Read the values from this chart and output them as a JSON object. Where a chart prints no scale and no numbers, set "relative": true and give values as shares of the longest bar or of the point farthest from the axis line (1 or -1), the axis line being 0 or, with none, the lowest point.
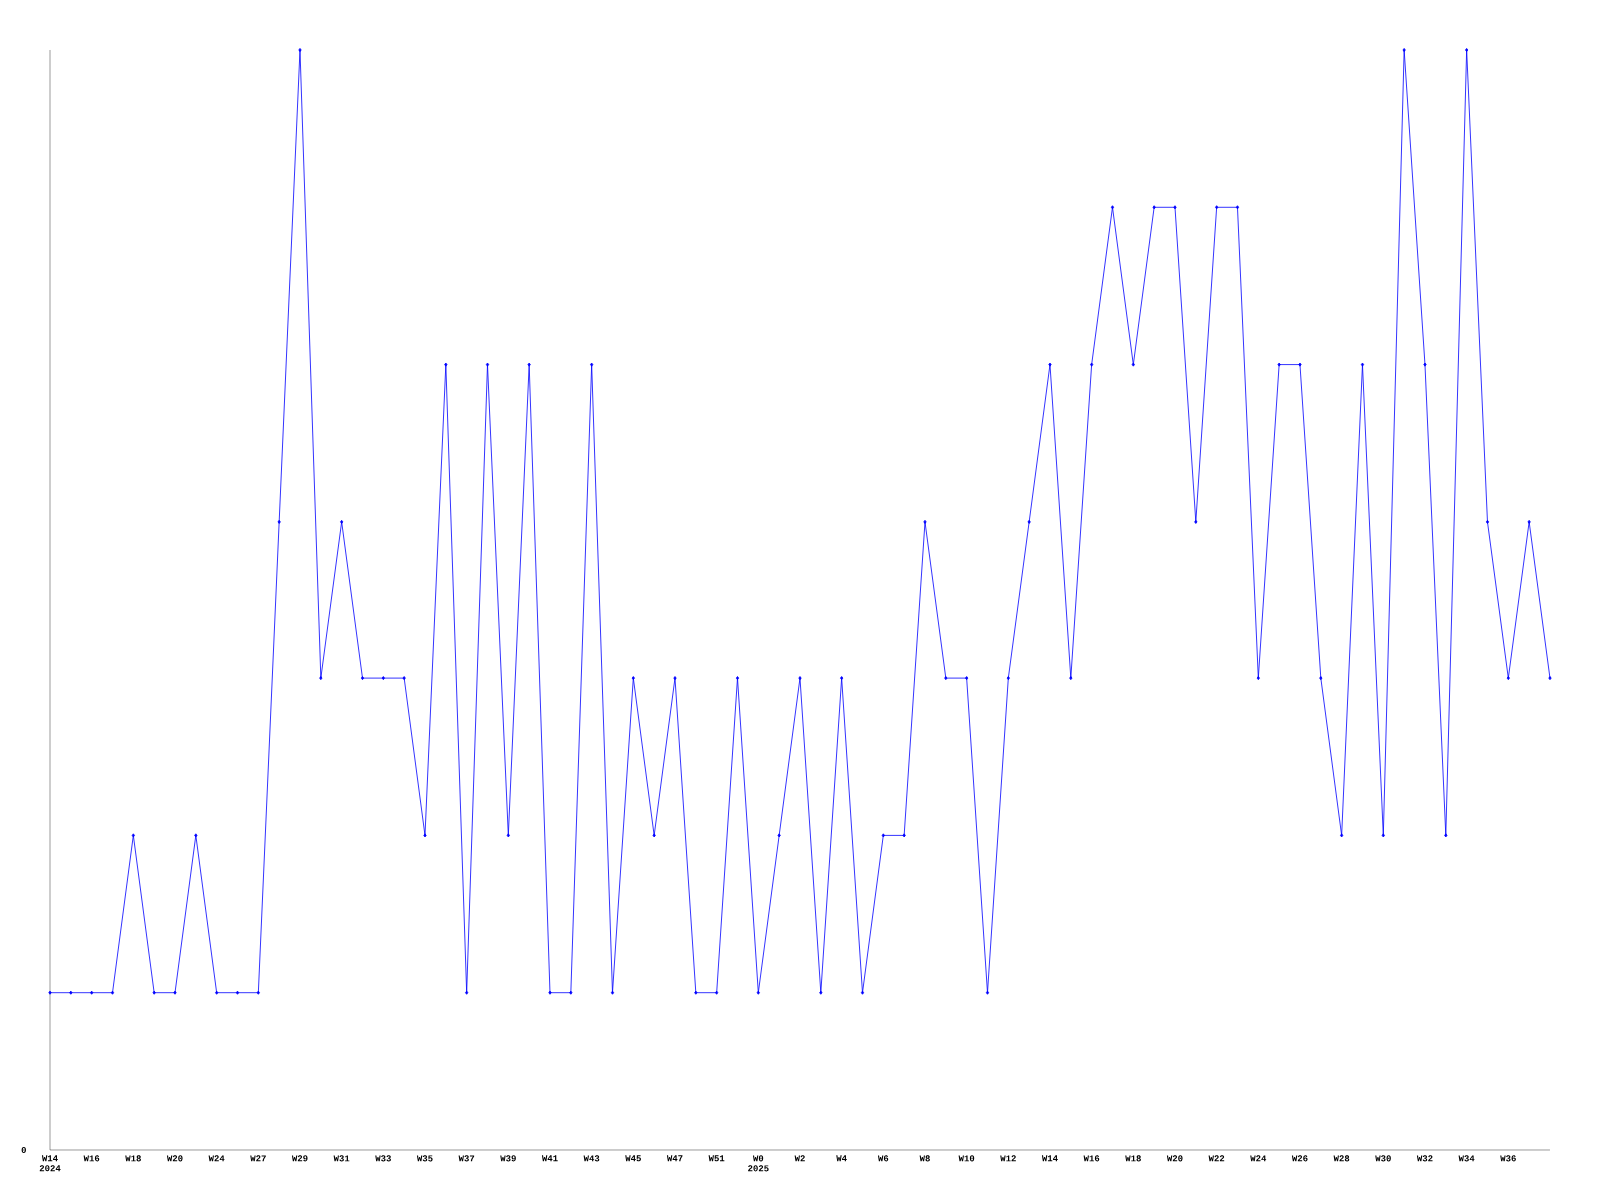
{
  "chart_data": {
    "type": "line",
    "relative": true,
    "color": "#0000ff",
    "marker": "diamond",
    "line_style": "solid",
    "categories": [
      "W14 2024",
      null,
      "W16",
      null,
      "W18",
      null,
      "W20",
      null,
      "W24",
      null,
      "W27",
      null,
      "W29",
      null,
      "W31",
      null,
      "W33",
      null,
      "W35",
      null,
      "W37",
      null,
      "W39",
      null,
      "W41",
      null,
      "W43",
      null,
      "W45",
      null,
      "W47",
      null,
      "W51",
      null,
      "W0 2025",
      null,
      "W2",
      null,
      "W4",
      null,
      "W6",
      null,
      "W8",
      null,
      "W10",
      null,
      "W12",
      null,
      "W14",
      null,
      "W16",
      null,
      "W18",
      null,
      "W20",
      null,
      "W22",
      null,
      "W24",
      null,
      "W26",
      null,
      "W28",
      null,
      "W30",
      null,
      "W32",
      null,
      "W34",
      null,
      "W36",
      null,
      null
    ],
    "values": [
      0.143,
      0.143,
      0.143,
      0.143,
      0.286,
      0.143,
      0.143,
      0.286,
      0.143,
      0.143,
      0.143,
      0.571,
      1,
      0.429,
      0.571,
      0.429,
      0.429,
      0.429,
      0.286,
      0.714,
      0.143,
      0.714,
      0.286,
      0.714,
      0.143,
      0.143,
      0.714,
      0.143,
      0.429,
      0.286,
      0.429,
      0.143,
      0.143,
      0.429,
      0.143,
      0.286,
      0.429,
      0.143,
      0.429,
      0.143,
      0.286,
      0.286,
      0.571,
      0.429,
      0.429,
      0.143,
      0.429,
      0.571,
      0.714,
      0.429,
      0.714,
      0.857,
      0.714,
      0.857,
      0.857,
      0.571,
      0.857,
      0.857,
      0.429,
      0.714,
      0.714,
      0.429,
      0.286,
      0.714,
      0.286,
      1,
      0.714,
      0.286,
      1,
      0.571,
      0.429,
      0.571,
      0.429
    ],
    "annotations": [
      "0"
    ]
  }
}
